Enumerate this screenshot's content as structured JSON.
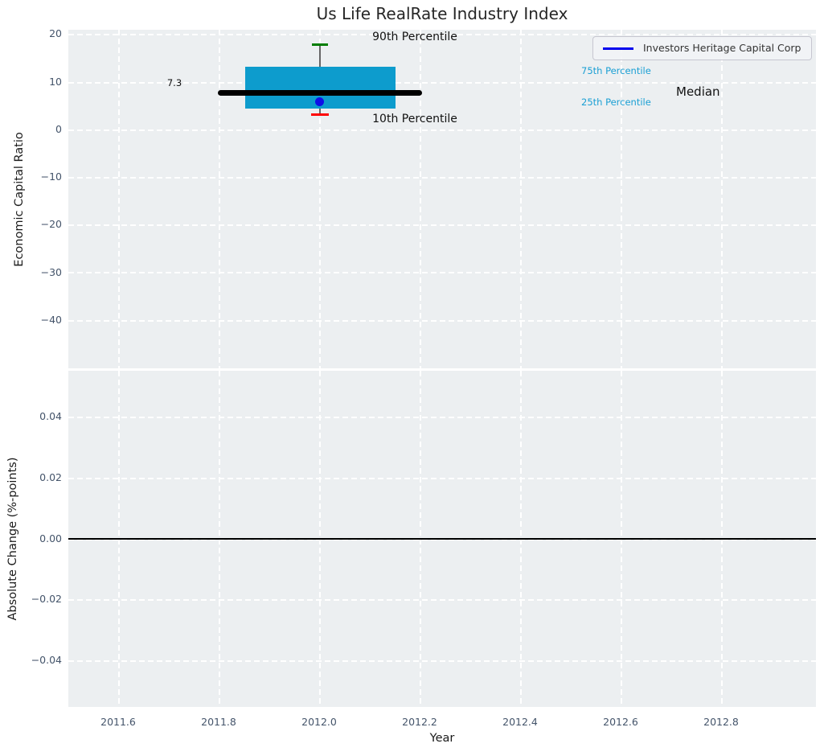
{
  "title": "Us Life RealRate Industry Index",
  "legend": {
    "label": "Investors Heritage Capital Corp"
  },
  "top_chart": {
    "ylabel": "Economic Capital Ratio",
    "yticks": [
      "20",
      "10",
      "0",
      "−10",
      "−20",
      "−30",
      "−40"
    ]
  },
  "bottom_chart": {
    "ylabel": "Absolute Change (%-points)",
    "yticks": [
      "0.04",
      "0.02",
      "0.00",
      "−0.02",
      "−0.04"
    ]
  },
  "xaxis": {
    "label": "Year",
    "ticks": [
      "2011.6",
      "2011.8",
      "2012.0",
      "2012.2",
      "2012.4",
      "2012.6",
      "2012.8"
    ]
  },
  "annotations": {
    "p90": "90th Percentile",
    "p10": "10th Percentile",
    "p75": "75th Percentile",
    "p25": "25th Percentile",
    "median": "Median",
    "median_value": "7.3"
  },
  "colors": {
    "box_fill": "#0d9ccd",
    "median_line": "#000000",
    "p90_cap": "#007d00",
    "p10_cap": "#ff0000",
    "company_dot": "#0f0fe8",
    "legend_line": "#0000ee",
    "percentile_text": "#1a9fd4",
    "plot_background": "#eceff1",
    "tick_text": "#44546a"
  },
  "chart_data": {
    "type": "box",
    "title": "Us Life RealRate Industry Index",
    "series_label": "Investors Heritage Capital Corp",
    "subplots": [
      {
        "ylabel": "Economic Capital Ratio",
        "ylim": [
          -50,
          21
        ],
        "yticks": [
          20,
          10,
          0,
          -10,
          -20,
          -30,
          -40
        ],
        "box": {
          "x": 2012.0,
          "p10": 2.9,
          "p25": 4.2,
          "median": 7.3,
          "p75": 12.8,
          "p90": 17.7,
          "company_value": 5.5,
          "box_x_span": [
            2011.85,
            2012.15
          ],
          "median_x_span": [
            2011.8,
            2012.2
          ]
        },
        "median_label": "7.3",
        "grid": true
      },
      {
        "ylabel": "Absolute Change (%-points)",
        "ylim": [
          -0.055,
          0.055
        ],
        "yticks": [
          0.04,
          0.02,
          0.0,
          -0.02,
          -0.04
        ],
        "zero_line_y": 0.0,
        "series": [],
        "grid": true
      }
    ],
    "xlabel": "Year",
    "xlim": [
      2011.5,
      2012.99
    ],
    "xticks": [
      2011.6,
      2011.8,
      2012.0,
      2012.2,
      2012.4,
      2012.6,
      2012.8
    ],
    "legend_position": "upper right"
  }
}
